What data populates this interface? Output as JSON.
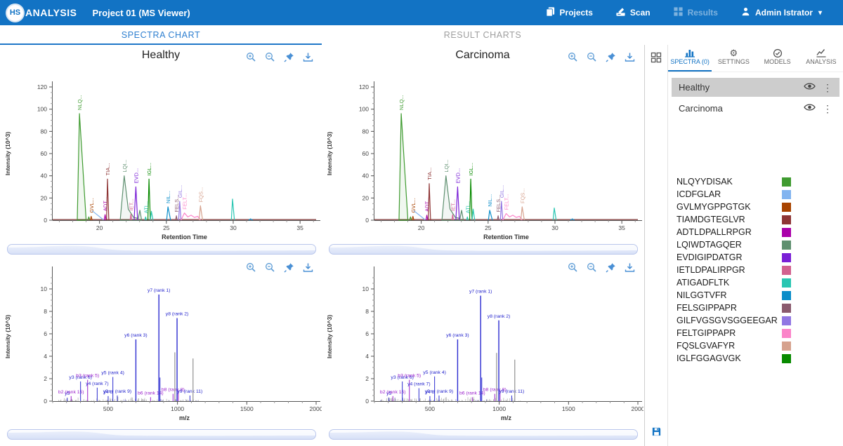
{
  "header": {
    "logo_hs": "HS",
    "logo_text": "ANALYSIS",
    "title": "Project 01 (MS Viewer)",
    "nav": [
      {
        "label": "Projects",
        "icon": "projects-icon",
        "disabled": false
      },
      {
        "label": "Scan",
        "icon": "scan-icon",
        "disabled": false
      },
      {
        "label": "Results",
        "icon": "results-icon",
        "disabled": true
      },
      {
        "label": "Admin Istrator",
        "icon": "user-icon",
        "disabled": false,
        "caret": "▾"
      }
    ]
  },
  "tabs": {
    "left": "SPECTRA CHART",
    "right": "RESULT CHARTS",
    "active": "left"
  },
  "chart_toolbar_icons": [
    "zoom-in",
    "zoom-out",
    "pin",
    "download"
  ],
  "sidebar": {
    "tabs": [
      {
        "label": "SPECTRA (0)",
        "icon": "spectra-chart-icon",
        "active": true
      },
      {
        "label": "SETTINGS",
        "icon": "gear-icon",
        "active": false
      },
      {
        "label": "MODELS",
        "icon": "check-circle-icon",
        "active": false
      },
      {
        "label": "ANALYSIS",
        "icon": "line-chart-icon",
        "active": false
      }
    ],
    "grid_icon": "grid-view-icon",
    "save_icon": "save-icon",
    "samples": [
      {
        "name": "Healthy",
        "selected": true
      },
      {
        "name": "Carcinoma",
        "selected": false
      }
    ],
    "legend": [
      {
        "name": "NLQYYDISAK",
        "color": "#3f9b30"
      },
      {
        "name": "ICDFGLAR",
        "color": "#82b4f0"
      },
      {
        "name": "GVLMYGPPGTGK",
        "color": "#a84300"
      },
      {
        "name": "TIAMDGTEGLVR",
        "color": "#8e3535"
      },
      {
        "name": "ADTLDPALLRPGR",
        "color": "#aa00aa"
      },
      {
        "name": "LQIWDTAGQER",
        "color": "#5f9070"
      },
      {
        "name": "EVDIGIPDATGR",
        "color": "#7a1fd6"
      },
      {
        "name": "IETLDPALIRPGR",
        "color": "#d2618f"
      },
      {
        "name": "ATIGADFLTK",
        "color": "#29c6b2"
      },
      {
        "name": "NILGGTVFR",
        "color": "#0a8dc9"
      },
      {
        "name": "FELSGIPPAPR",
        "color": "#8a5a6e"
      },
      {
        "name": "GILFVGSGVSGGEEGAR",
        "color": "#9176e3"
      },
      {
        "name": "FELTGIPPAPR",
        "color": "#fb84c9"
      },
      {
        "name": "FQSLGVAFYR",
        "color": "#d6a28e"
      },
      {
        "name": "IGLFGGAGVGK",
        "color": "#088a00"
      }
    ]
  },
  "chart_data": [
    {
      "id": "healthy-chromatogram",
      "type": "line",
      "title": "Healthy",
      "xlabel": "Retention Time",
      "ylabel": "Intensity (10^3)",
      "xlim": [
        16.5,
        36.2
      ],
      "ylim": [
        0,
        120
      ],
      "xticks": [
        20,
        25,
        30,
        35
      ],
      "yticks": [
        0,
        20,
        40,
        60,
        80,
        100,
        120
      ],
      "peaks": [
        {
          "label": "NLQ...",
          "color": "#3f9b30",
          "rt": 18.5,
          "h": 96,
          "wl": 0.16,
          "wr": 0.5,
          "fill": true
        },
        {
          "color": "#3f9b30",
          "rt": 19.2,
          "h": 3,
          "wl": 0.08,
          "wr": 0.08
        },
        {
          "label": "GVL...",
          "color": "#a84300",
          "rt": 19.38,
          "h": 3.5,
          "wl": 0.07,
          "wr": 0.07
        },
        {
          "seg": [
            [
              19.45,
              8.5
            ],
            [
              20.3,
              0.3
            ]
          ],
          "color": "#82b4f0"
        },
        {
          "label": "ADT...",
          "color": "#aa00aa",
          "rt": 20.42,
          "h": 5,
          "wl": 0.07,
          "wr": 0.07
        },
        {
          "label": "TIA...",
          "color": "#8e3535",
          "rt": 20.6,
          "h": 37,
          "wl": 0.07,
          "wr": 0.1
        },
        {
          "label": "LQI...",
          "color": "#5f9070",
          "rt": 21.85,
          "h": 40,
          "fill": true,
          "pts": [
            [
              21.55,
              0
            ],
            [
              21.85,
              40
            ],
            [
              22.15,
              10
            ],
            [
              22.55,
              2.5
            ],
            [
              22.9,
              1.5
            ],
            [
              23.02,
              9
            ],
            [
              23.15,
              0
            ]
          ]
        },
        {
          "label": "IET...",
          "color": "#d2618f",
          "rt": 22.35,
          "h": 5.5,
          "wl": 0.06,
          "wr": 0.06
        },
        {
          "label": "EVD...",
          "color": "#7a1fd6",
          "rt": 22.72,
          "h": 30,
          "wl": 0.13,
          "wr": 0.13
        },
        {
          "label": "ATI...",
          "color": "#29c6b2",
          "rt": 23.45,
          "h": 3,
          "wl": 0.06,
          "wr": 0.06
        },
        {
          "label": "IGL...",
          "color": "#088a00",
          "rt": 23.7,
          "h": 37,
          "wl": 0.08,
          "wr": 0.1
        },
        {
          "color": "#29c6b2",
          "rt": 23.88,
          "h": 8,
          "wl": 0.08,
          "wr": 0.12
        },
        {
          "label": "NIL...",
          "color": "#0a8dc9",
          "rt": 25.12,
          "h": 12,
          "wl": 0.1,
          "wr": 0.2
        },
        {
          "label": "FELS...",
          "color": "#8a5a6e",
          "rt": 25.75,
          "h": 4,
          "wl": 0.06,
          "wr": 0.06
        },
        {
          "label": "GIL...",
          "color": "#9176e3",
          "rt": 26.0,
          "h": 17,
          "wl": 0.08,
          "wr": 0.1
        },
        {
          "label": "FELT...",
          "color": "#fb84c9",
          "rt": 26.35,
          "h": 6.5,
          "pts": [
            [
              26.1,
              0
            ],
            [
              26.35,
              6.5
            ],
            [
              26.6,
              3
            ],
            [
              26.85,
              4.5
            ],
            [
              27.1,
              2.5
            ],
            [
              27.35,
              3.5
            ],
            [
              27.55,
              0
            ]
          ]
        },
        {
          "label": "FQS...",
          "color": "#d6a28e",
          "rt": 27.55,
          "h": 13,
          "wl": 0.1,
          "wr": 0.16
        },
        {
          "color": "#29c6b2",
          "rt": 29.95,
          "h": 19,
          "wl": 0.09,
          "wr": 0.14
        },
        {
          "color": "#0a8dc9",
          "rt": 31.3,
          "h": 1.2,
          "wl": 0.15,
          "wr": 0.15
        }
      ]
    },
    {
      "id": "carcinoma-chromatogram",
      "type": "line",
      "title": "Carcinoma",
      "xlabel": "Retention Time",
      "ylabel": "Intensity (10^3)",
      "xlim": [
        16.5,
        36.2
      ],
      "ylim": [
        0,
        120
      ],
      "xticks": [
        20,
        25,
        30,
        35
      ],
      "yticks": [
        0,
        20,
        40,
        60,
        80,
        100,
        120
      ],
      "peaks": [
        {
          "label": "NLQ...",
          "color": "#3f9b30",
          "rt": 18.5,
          "h": 96,
          "wl": 0.16,
          "wr": 0.5,
          "fill": true
        },
        {
          "color": "#3f9b30",
          "rt": 19.2,
          "h": 3,
          "wl": 0.08,
          "wr": 0.08
        },
        {
          "label": "GVL...",
          "color": "#a84300",
          "rt": 19.38,
          "h": 3.5,
          "wl": 0.07,
          "wr": 0.07
        },
        {
          "seg": [
            [
              19.45,
              8.5
            ],
            [
              20.3,
              0.3
            ]
          ],
          "color": "#82b4f0"
        },
        {
          "label": "ADT...",
          "color": "#aa00aa",
          "rt": 20.42,
          "h": 4.5,
          "wl": 0.07,
          "wr": 0.07
        },
        {
          "label": "TIA...",
          "color": "#8e3535",
          "rt": 20.6,
          "h": 33,
          "wl": 0.07,
          "wr": 0.1
        },
        {
          "label": "LQI...",
          "color": "#5f9070",
          "rt": 21.85,
          "h": 40,
          "fill": true,
          "pts": [
            [
              21.55,
              0
            ],
            [
              21.85,
              40
            ],
            [
              22.15,
              10
            ],
            [
              22.55,
              2.5
            ],
            [
              22.9,
              1.5
            ],
            [
              23.02,
              9
            ],
            [
              23.15,
              0
            ]
          ]
        },
        {
          "label": "IET...",
          "color": "#d2618f",
          "rt": 22.35,
          "h": 5,
          "wl": 0.06,
          "wr": 0.06
        },
        {
          "label": "EVD...",
          "color": "#7a1fd6",
          "rt": 22.72,
          "h": 30,
          "wl": 0.13,
          "wr": 0.13
        },
        {
          "label": "ATI...",
          "color": "#29c6b2",
          "rt": 23.45,
          "h": 3,
          "wl": 0.06,
          "wr": 0.06
        },
        {
          "label": "IGL...",
          "color": "#088a00",
          "rt": 23.7,
          "h": 37,
          "wl": 0.08,
          "wr": 0.1
        },
        {
          "color": "#29c6b2",
          "rt": 23.88,
          "h": 10,
          "wl": 0.08,
          "wr": 0.12
        },
        {
          "label": "NIL...",
          "color": "#0a8dc9",
          "rt": 25.12,
          "h": 9,
          "wl": 0.1,
          "wr": 0.2
        },
        {
          "label": "FELS...",
          "color": "#8a5a6e",
          "rt": 25.75,
          "h": 4,
          "wl": 0.06,
          "wr": 0.06
        },
        {
          "label": "GIL...",
          "color": "#9176e3",
          "rt": 26.0,
          "h": 17,
          "wl": 0.08,
          "wr": 0.1
        },
        {
          "label": "FELT...",
          "color": "#fb84c9",
          "rt": 26.35,
          "h": 6,
          "pts": [
            [
              26.1,
              0
            ],
            [
              26.35,
              6
            ],
            [
              26.6,
              3
            ],
            [
              26.85,
              4.5
            ],
            [
              27.1,
              2.5
            ],
            [
              27.35,
              3.5
            ],
            [
              27.55,
              0
            ]
          ]
        },
        {
          "label": "FQS...",
          "color": "#d6a28e",
          "rt": 27.55,
          "h": 12,
          "wl": 0.1,
          "wr": 0.16
        },
        {
          "color": "#29c6b2",
          "rt": 29.95,
          "h": 11,
          "wl": 0.09,
          "wr": 0.14
        },
        {
          "color": "#0a8dc9",
          "rt": 31.3,
          "h": 1.2,
          "wl": 0.15,
          "wr": 0.15
        }
      ]
    },
    {
      "id": "healthy-ms2-spectrum",
      "type": "stem",
      "title": "",
      "xlabel": "m/z",
      "ylabel": "Intensity (10^3)",
      "xlim": [
        100,
        2000
      ],
      "ylim": [
        0,
        11.5
      ],
      "xticks": [
        500,
        1000,
        1500,
        2000
      ],
      "yticks": [
        0,
        2,
        4,
        6,
        8,
        10
      ],
      "stems": [
        {
          "mz": 205,
          "h": 0.3,
          "c": "b",
          "label": "y5"
        },
        {
          "mz": 233,
          "h": 0.45,
          "c": "p",
          "label": "b2 (rank 15)"
        },
        {
          "mz": 301,
          "h": 1.75,
          "c": "b",
          "label": "y3 (rank 6)"
        },
        {
          "mz": 352,
          "h": 1.9,
          "c": "p",
          "label": "b3 (rank 5)"
        },
        {
          "mz": 421,
          "h": 1.2,
          "c": "b",
          "label": "y4 (rank 7)"
        },
        {
          "mz": 500,
          "h": 0.45,
          "c": "b",
          "label": "y4-b"
        },
        {
          "mz": 534,
          "h": 2.15,
          "c": "b",
          "label": "y5 (rank 4)"
        },
        {
          "mz": 566,
          "h": 0.5,
          "c": "b",
          "label": "y9++ (rank 9)"
        },
        {
          "mz": 700,
          "h": 5.5,
          "c": "b",
          "label": "y6 (rank 3)"
        },
        {
          "mz": 806,
          "h": 0.35,
          "c": "p",
          "label": "b6 (rank 14)"
        },
        {
          "mz": 866,
          "h": 9.5,
          "c": "b",
          "label": "y7 (rank 1)"
        },
        {
          "mz": 874,
          "h": 2.1,
          "c": "b"
        },
        {
          "mz": 968,
          "h": 0.65,
          "c": "p",
          "label": "b8 (rank 8)"
        },
        {
          "mz": 981,
          "h": 4.35,
          "c": "g"
        },
        {
          "mz": 997,
          "h": 7.4,
          "c": "b",
          "label": "y8 (rank 2)"
        },
        {
          "mz": 1006,
          "h": 0.9,
          "c": "p"
        },
        {
          "mz": 1090,
          "h": 0.5,
          "c": "b",
          "label": "y9 (rank 11)"
        },
        {
          "mz": 1112,
          "h": 3.8,
          "c": "g"
        }
      ],
      "noise": {
        "seed": 11,
        "count": 150,
        "xmin": 140,
        "xmax": 1160,
        "hmax": 0.38
      }
    },
    {
      "id": "carcinoma-ms2-spectrum",
      "type": "stem",
      "title": "",
      "xlabel": "m/z",
      "ylabel": "Intensity (10^3)",
      "xlim": [
        100,
        2000
      ],
      "ylim": [
        0,
        11.5
      ],
      "xticks": [
        500,
        1000,
        1500,
        2000
      ],
      "yticks": [
        0,
        2,
        4,
        6,
        8,
        10
      ],
      "stems": [
        {
          "mz": 205,
          "h": 0.3,
          "c": "b",
          "label": "y5"
        },
        {
          "mz": 233,
          "h": 0.45,
          "c": "p",
          "label": "b2 (rank 15)"
        },
        {
          "mz": 301,
          "h": 1.75,
          "c": "b",
          "label": "y3 (rank 6)"
        },
        {
          "mz": 352,
          "h": 1.9,
          "c": "p",
          "label": "b3 (rank 5)"
        },
        {
          "mz": 421,
          "h": 1.15,
          "c": "b",
          "label": "y4 (rank 7)"
        },
        {
          "mz": 500,
          "h": 0.45,
          "c": "b",
          "label": "y4-b"
        },
        {
          "mz": 534,
          "h": 2.2,
          "c": "b",
          "label": "y5 (rank 4)"
        },
        {
          "mz": 566,
          "h": 0.5,
          "c": "b",
          "label": "y9++ (rank 9)"
        },
        {
          "mz": 700,
          "h": 5.5,
          "c": "b",
          "label": "y6 (rank 3)"
        },
        {
          "mz": 806,
          "h": 0.35,
          "c": "p",
          "label": "b6 (rank 14)"
        },
        {
          "mz": 866,
          "h": 9.4,
          "c": "b",
          "label": "y7 (rank 1)"
        },
        {
          "mz": 874,
          "h": 2.1,
          "c": "b"
        },
        {
          "mz": 968,
          "h": 0.65,
          "c": "p",
          "label": "b8 (rank 8)"
        },
        {
          "mz": 981,
          "h": 4.3,
          "c": "g"
        },
        {
          "mz": 997,
          "h": 7.2,
          "c": "b",
          "label": "y8 (rank 2)"
        },
        {
          "mz": 1006,
          "h": 0.9,
          "c": "p"
        },
        {
          "mz": 1090,
          "h": 0.5,
          "c": "b",
          "label": "y9 (rank 11)"
        },
        {
          "mz": 1112,
          "h": 3.7,
          "c": "g"
        }
      ],
      "noise": {
        "seed": 23,
        "count": 150,
        "xmin": 140,
        "xmax": 1160,
        "hmax": 0.38
      }
    }
  ]
}
